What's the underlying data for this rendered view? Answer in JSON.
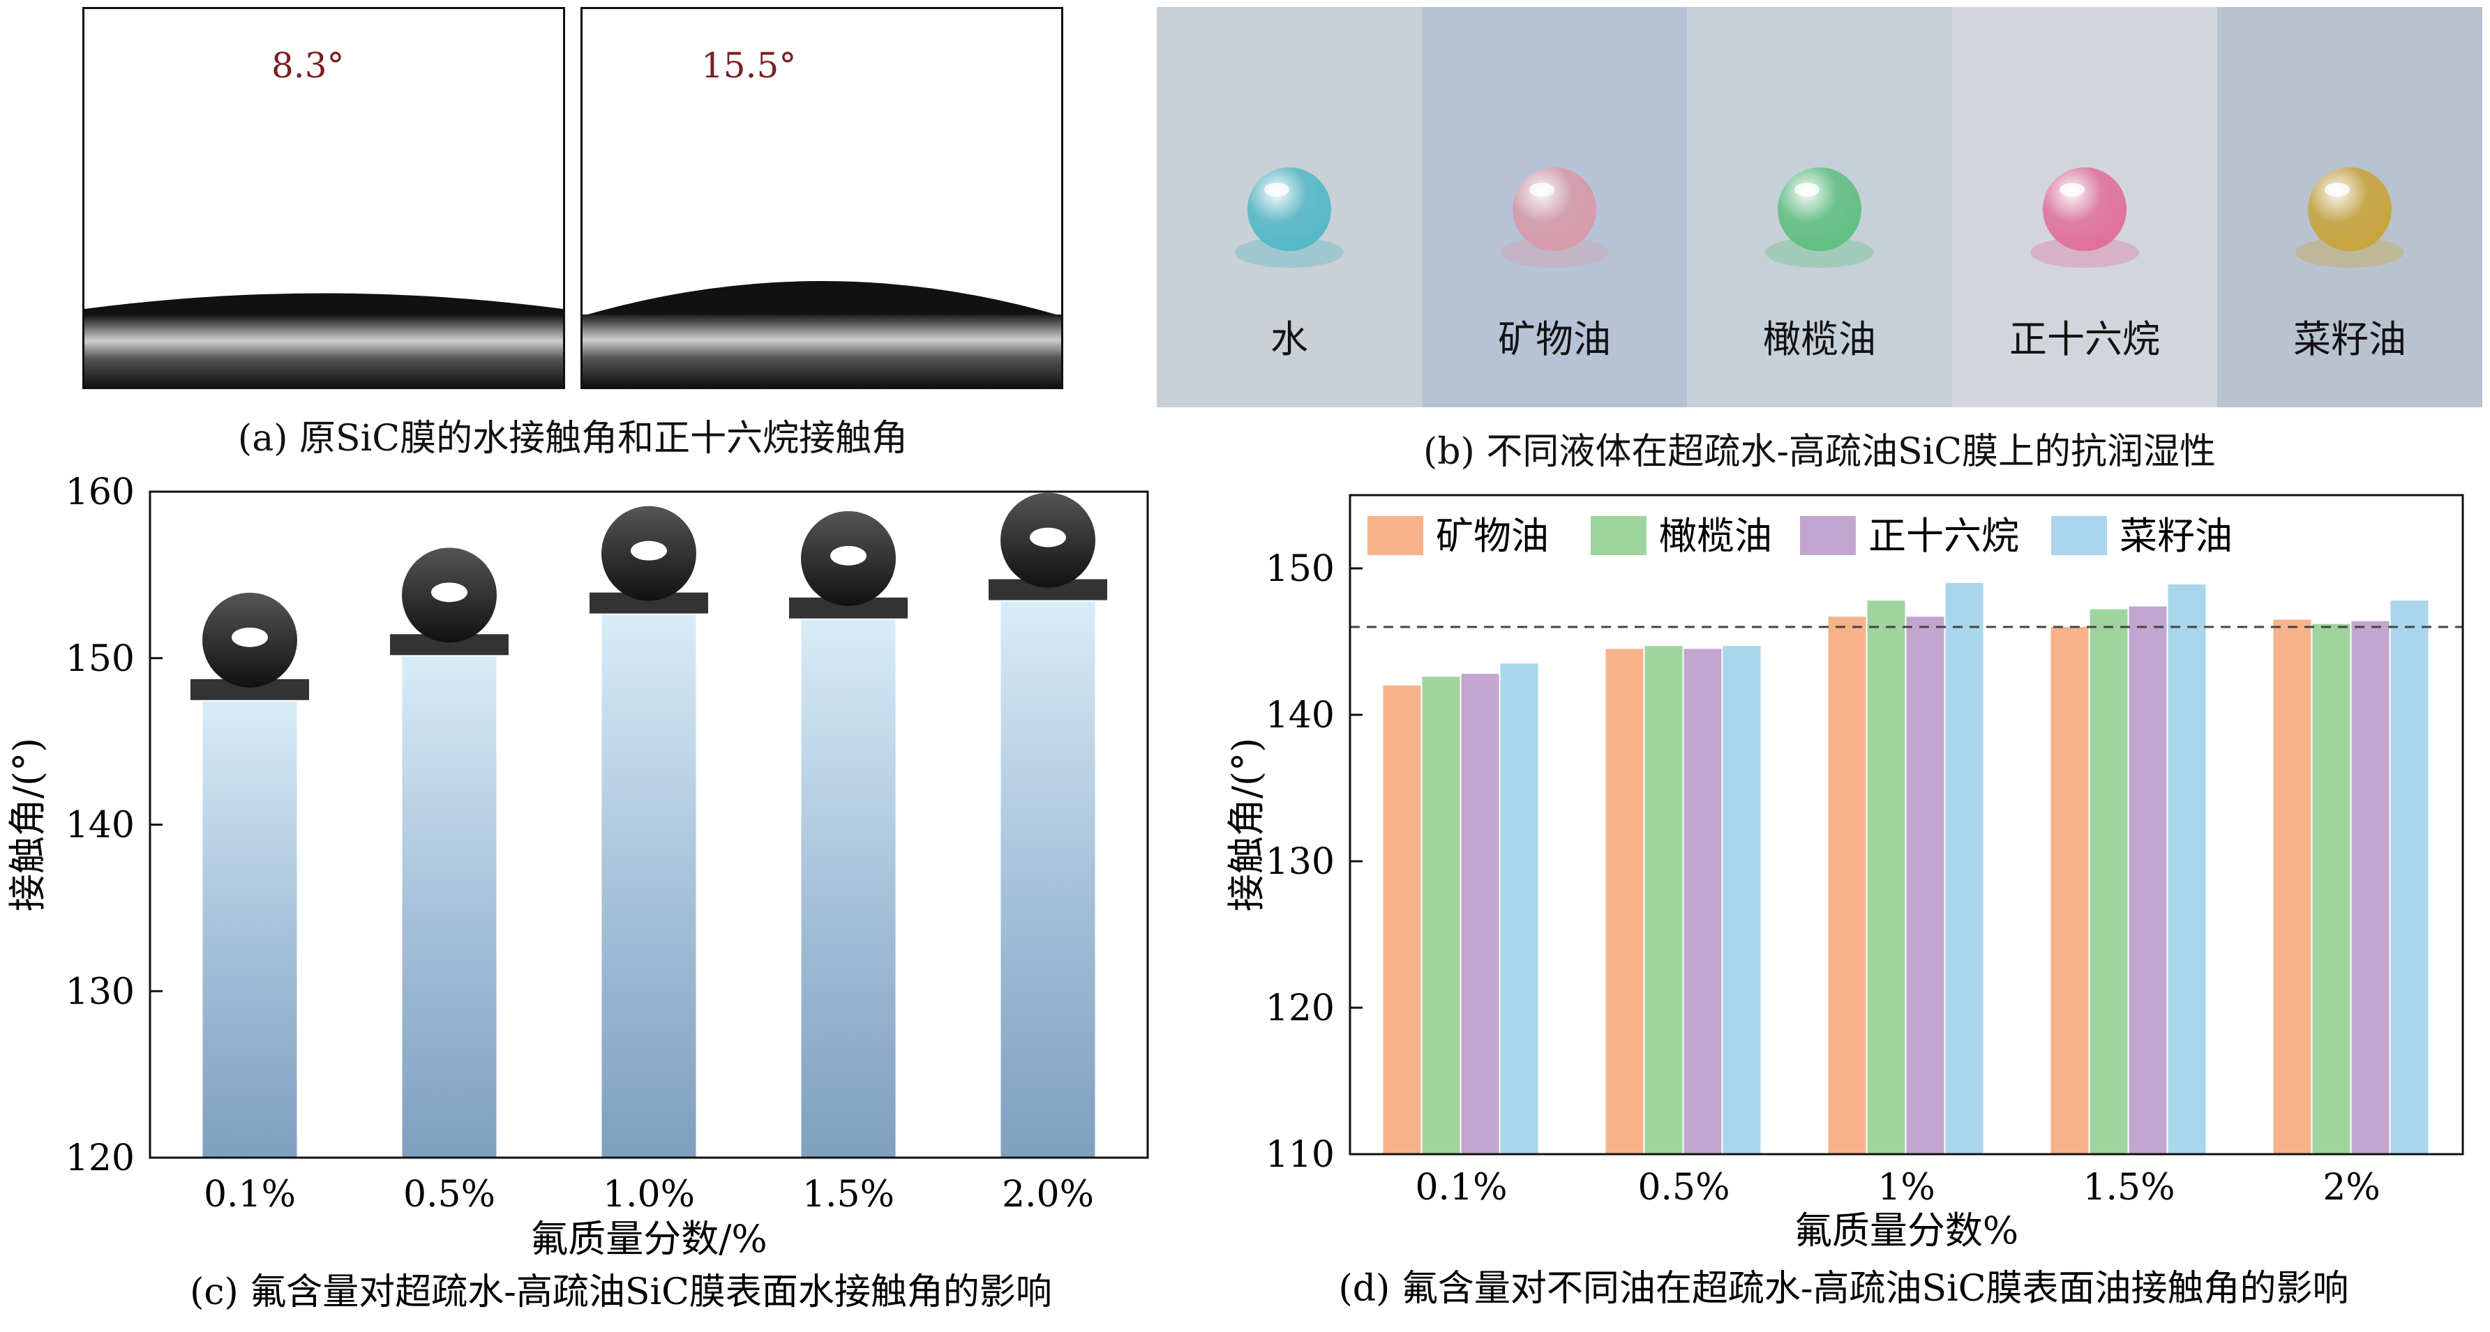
{
  "panel_a": {
    "caption": "(a) 原SiC膜的水接触角和正十六烷接触角",
    "angles": [
      "8.3°",
      "15.5°"
    ]
  },
  "panel_b": {
    "caption": "(b) 不同液体在超疏水-高疏油SiC膜上的抗润湿性",
    "liquids": [
      {
        "label": "水",
        "color": "#53b8c6",
        "bg": "#c9d0d6"
      },
      {
        "label": "矿物油",
        "color": "#d89aa9",
        "bg": "#b6c3d6"
      },
      {
        "label": "橄榄油",
        "color": "#5fbf80",
        "bg": "#c6d0d8"
      },
      {
        "label": "正十六烷",
        "color": "#e06f9a",
        "bg": "#d2d6dc"
      },
      {
        "label": "菜籽油",
        "color": "#c9a43a",
        "bg": "#b9c3d0"
      }
    ]
  },
  "chart_data": [
    {
      "type": "bar",
      "caption": "(c) 氟含量对超疏水-高疏油SiC膜表面水接触角的影响",
      "xlabel": "氟质量分数/%",
      "ylabel": "接触角/(°)",
      "categories": [
        "0.1%",
        "0.5%",
        "1.0%",
        "1.5%",
        "2.0%"
      ],
      "values": [
        147.4,
        150.1,
        152.6,
        152.3,
        153.4
      ],
      "ylim": [
        120,
        160
      ],
      "yticks": [
        "120",
        "130",
        "140",
        "150",
        "160"
      ],
      "bar_color": "#7f9fbf"
    },
    {
      "type": "bar",
      "caption": "(d) 氟含量对不同油在超疏水-高疏油SiC膜表面油接触角的影响",
      "xlabel": "氟质量分数%",
      "ylabel": "接触角/(°)",
      "categories": [
        "0.1%",
        "0.5%",
        "1%",
        "1.5%",
        "2%"
      ],
      "ylim": [
        110,
        155
      ],
      "yticks": [
        "110",
        "120",
        "130",
        "140",
        "150"
      ],
      "reference_line": 146,
      "legend_position": "top",
      "series": [
        {
          "name": "矿物油",
          "color": "#f6b38b",
          "values": [
            142.0,
            144.5,
            146.7,
            146.0,
            146.5
          ]
        },
        {
          "name": "橄榄油",
          "color": "#9fd49f",
          "values": [
            142.6,
            144.7,
            147.8,
            147.2,
            146.2
          ]
        },
        {
          "name": "正十六烷",
          "color": "#c3a6cf",
          "values": [
            142.8,
            144.5,
            146.7,
            147.4,
            146.4
          ]
        },
        {
          "name": "菜籽油",
          "color": "#a9d6ea",
          "values": [
            143.5,
            144.7,
            149.0,
            148.9,
            147.8
          ]
        }
      ]
    }
  ]
}
